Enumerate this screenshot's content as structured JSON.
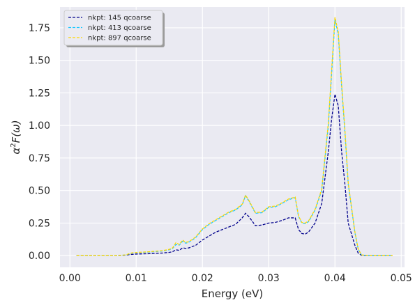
{
  "chart_data": {
    "type": "line",
    "title": "",
    "xlabel": "Energy (eV)",
    "ylabel_prefix": "α",
    "ylabel_sup": "2",
    "ylabel_suffix": "F(ω)",
    "xlim": [
      -0.0015,
      0.0505
    ],
    "ylim": [
      -0.09,
      1.91
    ],
    "x_ticks": [
      0.0,
      0.01,
      0.02,
      0.03,
      0.04,
      0.05
    ],
    "x_tick_labels": [
      "0.00",
      "0.01",
      "0.02",
      "0.03",
      "0.04",
      "0.05"
    ],
    "y_ticks": [
      0.0,
      0.25,
      0.5,
      0.75,
      1.0,
      1.25,
      1.5,
      1.75
    ],
    "y_tick_labels": [
      "0.00",
      "0.25",
      "0.50",
      "0.75",
      "1.00",
      "1.25",
      "1.50",
      "1.75"
    ],
    "grid": true,
    "background": "#EAEAF2",
    "legend_position": "upper-left",
    "series": [
      {
        "name": "nkpt: 145 qcoarse",
        "color": "#00008B",
        "dash": "dashed",
        "x": [
          0.001,
          0.007,
          0.0085,
          0.009,
          0.0095,
          0.01,
          0.012,
          0.014,
          0.015,
          0.0155,
          0.016,
          0.0165,
          0.017,
          0.0175,
          0.018,
          0.0185,
          0.019,
          0.02,
          0.021,
          0.022,
          0.023,
          0.024,
          0.025,
          0.026,
          0.0265,
          0.027,
          0.028,
          0.029,
          0.03,
          0.031,
          0.032,
          0.033,
          0.034,
          0.0345,
          0.035,
          0.0355,
          0.036,
          0.037,
          0.038,
          0.039,
          0.0395,
          0.04,
          0.0405,
          0.041,
          0.0415,
          0.042,
          0.043,
          0.0435,
          0.044,
          0.045,
          0.0487
        ],
        "y": [
          0.0,
          0.0,
          0.003,
          0.008,
          0.01,
          0.012,
          0.015,
          0.02,
          0.025,
          0.03,
          0.045,
          0.04,
          0.06,
          0.055,
          0.06,
          0.07,
          0.08,
          0.12,
          0.15,
          0.18,
          0.2,
          0.22,
          0.24,
          0.29,
          0.325,
          0.3,
          0.23,
          0.235,
          0.25,
          0.255,
          0.27,
          0.29,
          0.29,
          0.2,
          0.17,
          0.165,
          0.18,
          0.25,
          0.4,
          0.8,
          1.05,
          1.24,
          1.15,
          0.8,
          0.55,
          0.25,
          0.08,
          0.02,
          0.002,
          0.0,
          0.0
        ]
      },
      {
        "name": "nkpt: 413 qcoarse",
        "color": "#1EC8FF",
        "dash": "dashed",
        "x": [
          0.001,
          0.007,
          0.0085,
          0.009,
          0.0095,
          0.01,
          0.012,
          0.014,
          0.015,
          0.0155,
          0.016,
          0.0165,
          0.017,
          0.0175,
          0.018,
          0.0185,
          0.019,
          0.02,
          0.021,
          0.022,
          0.023,
          0.024,
          0.025,
          0.026,
          0.0265,
          0.027,
          0.028,
          0.029,
          0.03,
          0.031,
          0.032,
          0.033,
          0.034,
          0.0345,
          0.035,
          0.0355,
          0.036,
          0.037,
          0.038,
          0.039,
          0.0395,
          0.04,
          0.0405,
          0.041,
          0.0415,
          0.042,
          0.043,
          0.0435,
          0.044,
          0.045,
          0.0487
        ],
        "y": [
          0.0,
          0.0,
          0.005,
          0.015,
          0.02,
          0.022,
          0.028,
          0.035,
          0.045,
          0.055,
          0.085,
          0.08,
          0.11,
          0.095,
          0.105,
          0.12,
          0.14,
          0.2,
          0.24,
          0.27,
          0.3,
          0.33,
          0.35,
          0.39,
          0.46,
          0.42,
          0.325,
          0.33,
          0.37,
          0.375,
          0.4,
          0.43,
          0.445,
          0.3,
          0.25,
          0.245,
          0.26,
          0.35,
          0.5,
          1.0,
          1.4,
          1.81,
          1.7,
          1.3,
          0.95,
          0.55,
          0.18,
          0.05,
          0.005,
          0.0,
          0.0
        ]
      },
      {
        "name": "nkpt: 897 qcoarse",
        "color": "#FFD700",
        "dash": "dashed",
        "x": [
          0.001,
          0.007,
          0.0085,
          0.009,
          0.0095,
          0.01,
          0.012,
          0.014,
          0.015,
          0.0155,
          0.016,
          0.0165,
          0.017,
          0.0175,
          0.018,
          0.0185,
          0.019,
          0.02,
          0.021,
          0.022,
          0.023,
          0.024,
          0.025,
          0.026,
          0.0265,
          0.027,
          0.028,
          0.029,
          0.03,
          0.031,
          0.032,
          0.033,
          0.034,
          0.0345,
          0.035,
          0.0355,
          0.036,
          0.037,
          0.038,
          0.039,
          0.0395,
          0.04,
          0.0405,
          0.041,
          0.0415,
          0.042,
          0.043,
          0.0435,
          0.044,
          0.045,
          0.0487
        ],
        "y": [
          0.0,
          0.0,
          0.006,
          0.016,
          0.022,
          0.024,
          0.03,
          0.038,
          0.048,
          0.06,
          0.1,
          0.085,
          0.12,
          0.1,
          0.11,
          0.125,
          0.145,
          0.205,
          0.245,
          0.275,
          0.305,
          0.335,
          0.355,
          0.395,
          0.465,
          0.425,
          0.33,
          0.335,
          0.375,
          0.38,
          0.405,
          0.435,
          0.45,
          0.305,
          0.255,
          0.25,
          0.265,
          0.355,
          0.51,
          1.02,
          1.43,
          1.83,
          1.72,
          1.32,
          0.97,
          0.56,
          0.185,
          0.052,
          0.006,
          0.0,
          0.0
        ]
      }
    ]
  }
}
